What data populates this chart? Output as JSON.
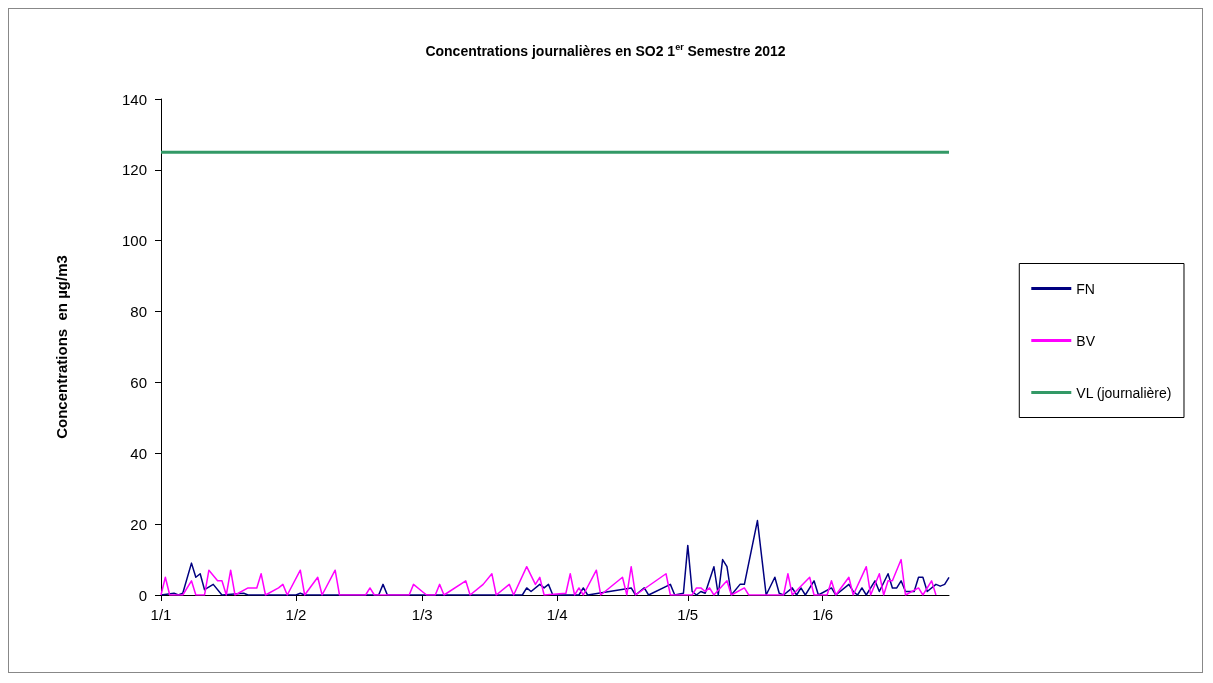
{
  "chart_data": {
    "type": "line",
    "title": "Concentrations journalières en SO2 1$^{er}$ Semestre 2012",
    "ylabel": "Concentrations  en µg/m3",
    "xlim": [
      "2012-01-01",
      "2012-06-30"
    ],
    "xticks": [
      {
        "value": "2012-01-01",
        "label": "1/1"
      },
      {
        "value": "2012-02-01",
        "label": "1/2"
      },
      {
        "value": "2012-03-01",
        "label": "1/3"
      },
      {
        "value": "2012-04-01",
        "label": "1/4"
      },
      {
        "value": "2012-05-01",
        "label": "1/5"
      },
      {
        "value": "2012-06-01",
        "label": "1/6"
      }
    ],
    "ylim": [
      0,
      140
    ],
    "yticks": [
      0,
      20,
      40,
      60,
      80,
      100,
      120,
      140
    ],
    "grid": false,
    "legend": "right",
    "marker": "none",
    "line_style": "solid",
    "series": [
      {
        "name": "FN",
        "color": "#000080",
        "x": [
          "2012-01-01",
          "2012-01-04",
          "2012-01-05",
          "2012-01-06",
          "2012-01-08",
          "2012-01-09",
          "2012-01-10",
          "2012-01-11",
          "2012-01-13",
          "2012-01-15",
          "2012-01-20",
          "2012-01-21",
          "2012-02-01",
          "2012-02-02",
          "2012-02-03",
          "2012-02-20",
          "2012-02-21",
          "2012-02-22",
          "2012-03-24",
          "2012-03-25",
          "2012-03-26",
          "2012-03-28",
          "2012-03-29",
          "2012-03-30",
          "2012-03-31",
          "2012-04-06",
          "2012-04-07",
          "2012-04-08",
          "2012-04-18",
          "2012-04-19",
          "2012-04-21",
          "2012-04-22",
          "2012-04-27",
          "2012-04-28",
          "2012-04-30",
          "2012-05-01",
          "2012-05-02",
          "2012-05-03",
          "2012-05-04",
          "2012-05-05",
          "2012-05-07",
          "2012-05-08",
          "2012-05-09",
          "2012-05-10",
          "2012-05-11",
          "2012-05-13",
          "2012-05-14",
          "2012-05-17",
          "2012-05-19",
          "2012-05-21",
          "2012-05-22",
          "2012-05-23",
          "2012-05-25",
          "2012-05-26",
          "2012-05-27",
          "2012-05-28",
          "2012-05-30",
          "2012-05-31",
          "2012-06-03",
          "2012-06-04",
          "2012-06-07",
          "2012-06-08",
          "2012-06-09",
          "2012-06-10",
          "2012-06-11",
          "2012-06-13",
          "2012-06-14",
          "2012-06-16",
          "2012-06-17",
          "2012-06-18",
          "2012-06-19",
          "2012-06-20",
          "2012-06-22",
          "2012-06-23",
          "2012-06-24",
          "2012-06-25",
          "2012-06-27",
          "2012-06-28",
          "2012-06-29",
          "2012-06-30"
        ],
        "values": [
          0,
          0.5,
          0,
          0.5,
          9,
          5,
          6,
          1.5,
          3,
          0,
          0.5,
          0,
          0,
          0.5,
          0,
          0,
          3,
          0,
          0,
          2,
          1,
          3,
          2,
          3,
          0,
          0,
          2,
          0,
          2,
          0,
          2,
          0,
          3,
          0,
          0.5,
          14,
          1,
          0,
          1,
          0.5,
          8,
          0,
          10,
          8,
          0,
          3,
          3,
          21,
          0,
          5,
          0.5,
          0,
          2,
          0,
          2,
          0,
          4,
          0,
          2,
          0,
          3,
          1,
          0,
          2,
          0,
          4,
          1,
          6,
          2,
          2,
          4,
          1,
          1,
          5,
          5,
          1,
          3,
          2.5,
          3,
          5
        ]
      },
      {
        "name": "BV",
        "color": "#ff00ff",
        "x": [
          "2012-01-01",
          "2012-01-02",
          "2012-01-03",
          "2012-01-06",
          "2012-01-08",
          "2012-01-09",
          "2012-01-11",
          "2012-01-12",
          "2012-01-14",
          "2012-01-15",
          "2012-01-16",
          "2012-01-17",
          "2012-01-18",
          "2012-01-21",
          "2012-01-23",
          "2012-01-24",
          "2012-01-25",
          "2012-01-28",
          "2012-01-29",
          "2012-01-30",
          "2012-02-02",
          "2012-02-03",
          "2012-02-06",
          "2012-02-07",
          "2012-02-10",
          "2012-02-11",
          "2012-02-17",
          "2012-02-18",
          "2012-02-19",
          "2012-02-27",
          "2012-02-28",
          "2012-03-01",
          "2012-03-02",
          "2012-03-04",
          "2012-03-05",
          "2012-03-06",
          "2012-03-11",
          "2012-03-12",
          "2012-03-15",
          "2012-03-17",
          "2012-03-18",
          "2012-03-21",
          "2012-03-22",
          "2012-03-25",
          "2012-03-27",
          "2012-03-28",
          "2012-03-29",
          "2012-04-03",
          "2012-04-04",
          "2012-04-05",
          "2012-04-06",
          "2012-04-07",
          "2012-04-10",
          "2012-04-11",
          "2012-04-16",
          "2012-04-17",
          "2012-04-18",
          "2012-04-19",
          "2012-04-26",
          "2012-04-27",
          "2012-05-02",
          "2012-05-03",
          "2012-05-04",
          "2012-05-05",
          "2012-05-06",
          "2012-05-07",
          "2012-05-10",
          "2012-05-11",
          "2012-05-14",
          "2012-05-15",
          "2012-05-23",
          "2012-05-24",
          "2012-05-25",
          "2012-05-29",
          "2012-05-30",
          "2012-06-02",
          "2012-06-03",
          "2012-06-04",
          "2012-06-07",
          "2012-06-08",
          "2012-06-11",
          "2012-06-12",
          "2012-06-14",
          "2012-06-15",
          "2012-06-16",
          "2012-06-17",
          "2012-06-19",
          "2012-06-20",
          "2012-06-23",
          "2012-06-24",
          "2012-06-26",
          "2012-06-27"
        ],
        "values": [
          0,
          5,
          0,
          0,
          4,
          0,
          0,
          7,
          4,
          4,
          0,
          7,
          0,
          2,
          2,
          6,
          0,
          2,
          3,
          0,
          7,
          0,
          5,
          0,
          7,
          0,
          0,
          2,
          0,
          0,
          3,
          1,
          0,
          0,
          3,
          0,
          4,
          0,
          3,
          6,
          0,
          3,
          0,
          8,
          3,
          5,
          0,
          0.5,
          6,
          0,
          2,
          0,
          7,
          0,
          5,
          0,
          8,
          0,
          6,
          0,
          0,
          2,
          2,
          1,
          2,
          0,
          4,
          0,
          2,
          0,
          0,
          6,
          0,
          5,
          0,
          0,
          4,
          0,
          5,
          0,
          8,
          0,
          6,
          0,
          4,
          4,
          10,
          0,
          2,
          0,
          4,
          0
        ]
      },
      {
        "name": "VL (journalière)",
        "color": "#339966",
        "x": [
          "2012-01-01",
          "2012-06-30"
        ],
        "values": [
          125,
          125
        ]
      }
    ]
  }
}
